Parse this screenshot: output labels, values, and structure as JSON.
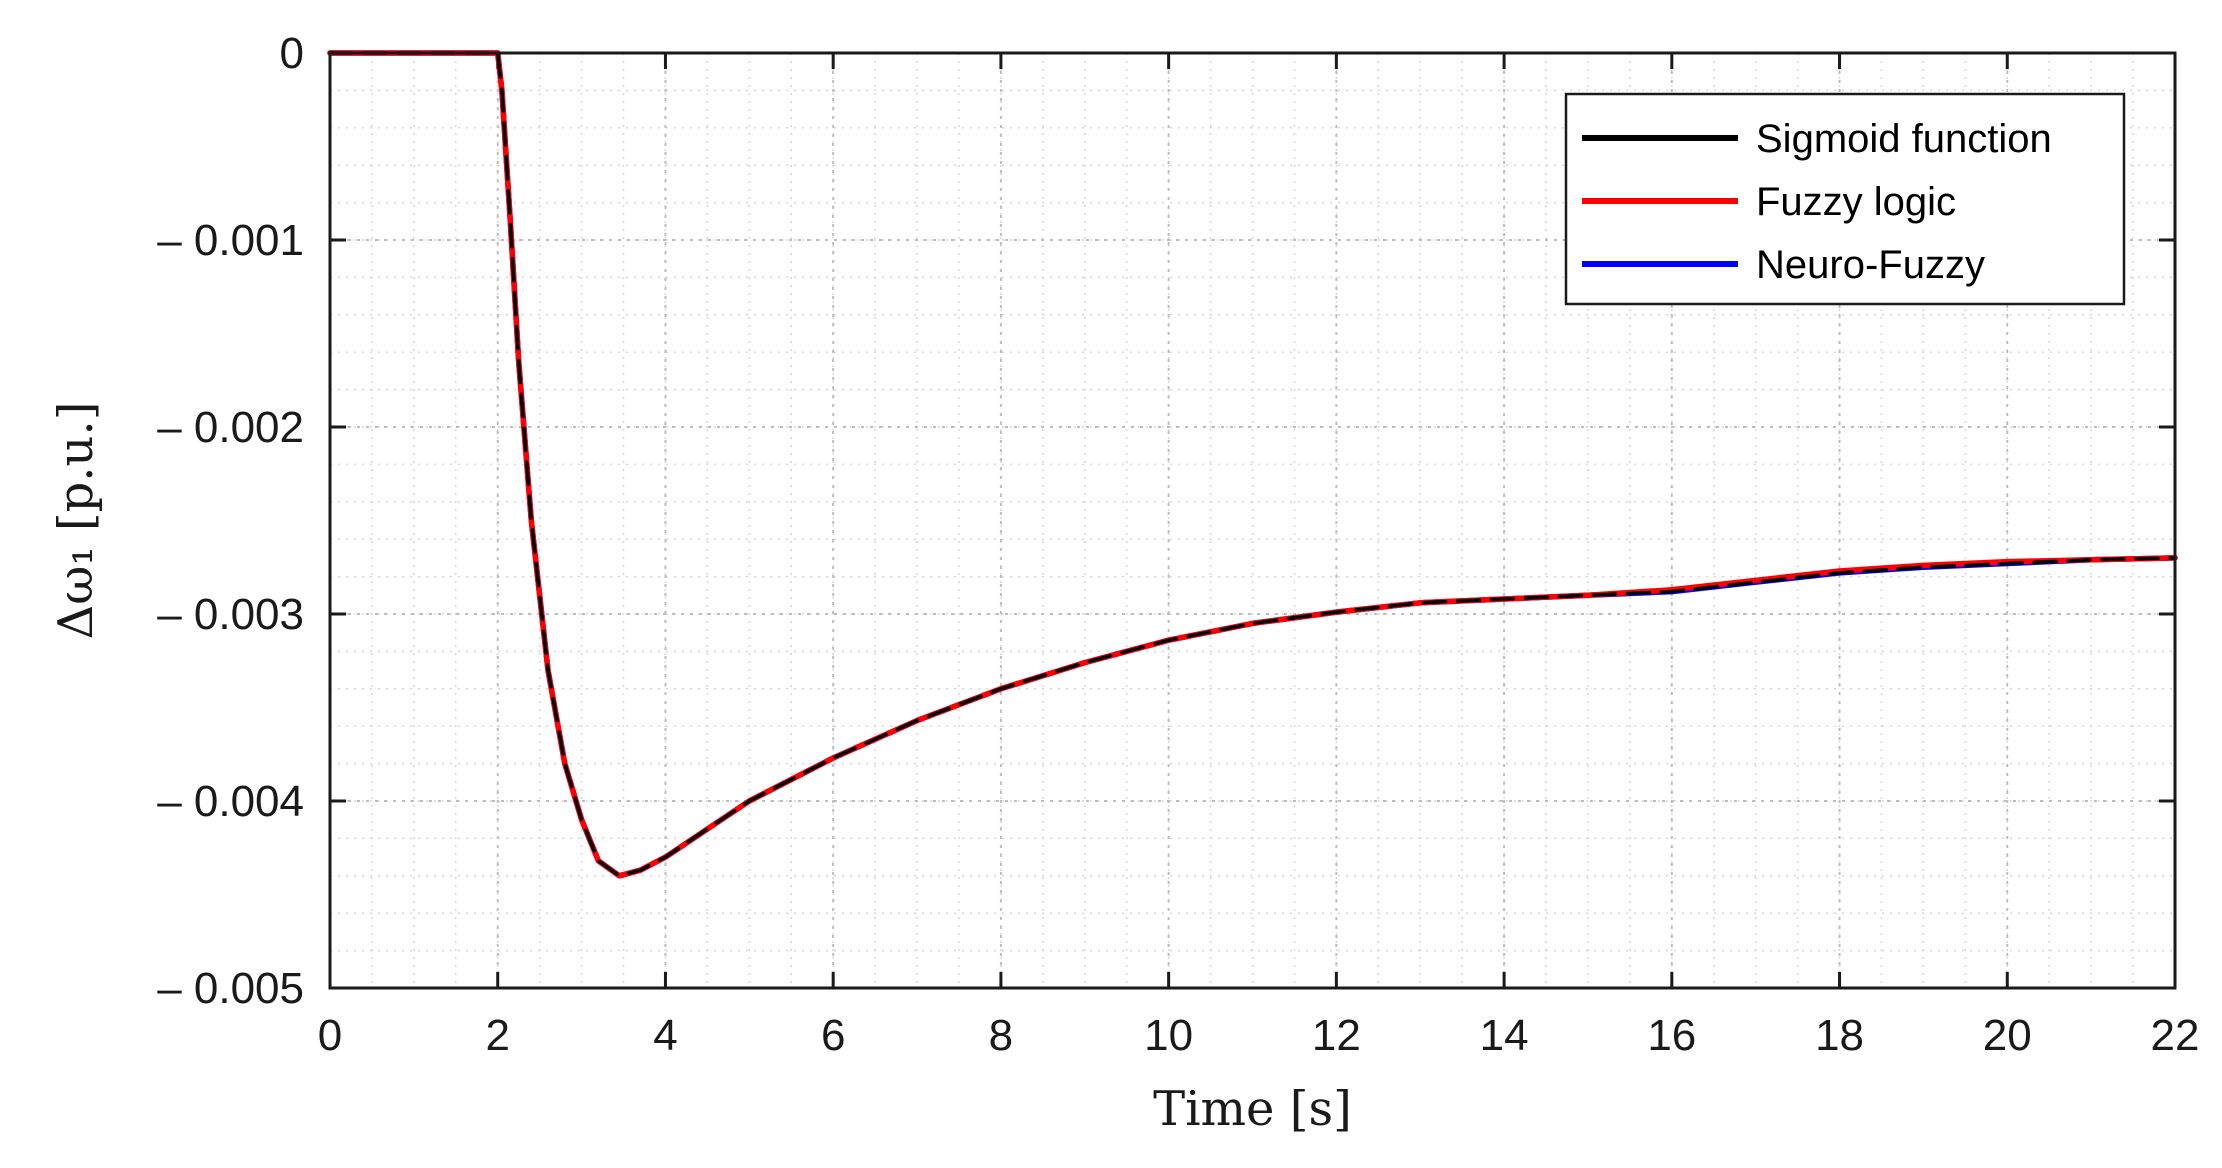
{
  "chart_data": {
    "type": "line",
    "title": "",
    "xlabel": "Time [s]",
    "ylabel": "Δω₁ [p.u.]",
    "xlim": [
      0,
      22
    ],
    "ylim": [
      -0.005,
      0
    ],
    "xticks": [
      0,
      2,
      4,
      6,
      8,
      10,
      12,
      14,
      16,
      18,
      20,
      22
    ],
    "xtick_labels": [
      "0",
      "2",
      "4",
      "6",
      "8",
      "10",
      "12",
      "14",
      "16",
      "18",
      "20",
      "22"
    ],
    "yticks": [
      0,
      -0.001,
      -0.002,
      -0.003,
      -0.004,
      -0.005
    ],
    "ytick_labels": [
      "0",
      "– 0.001",
      "– 0.002",
      "– 0.003",
      "– 0.004",
      "– 0.005"
    ],
    "grid": true,
    "minor_grid": true,
    "legend_position": "top-right",
    "series": [
      {
        "name": "Sigmoid function",
        "color": "#000000",
        "dashed": true,
        "points": [
          [
            0,
            0
          ],
          [
            2,
            0
          ],
          [
            2.05,
            -0.0002
          ],
          [
            2.15,
            -0.0009
          ],
          [
            2.25,
            -0.00165
          ],
          [
            2.4,
            -0.0025
          ],
          [
            2.6,
            -0.0033
          ],
          [
            2.8,
            -0.0038
          ],
          [
            3.0,
            -0.0041
          ],
          [
            3.2,
            -0.00432
          ],
          [
            3.45,
            -0.0044
          ],
          [
            3.7,
            -0.00437
          ],
          [
            4.0,
            -0.0043
          ],
          [
            4.5,
            -0.00415
          ],
          [
            5,
            -0.004
          ],
          [
            6,
            -0.00377
          ],
          [
            7,
            -0.00357
          ],
          [
            8,
            -0.0034
          ],
          [
            9,
            -0.00326
          ],
          [
            10,
            -0.00314
          ],
          [
            11,
            -0.00305
          ],
          [
            12,
            -0.00299
          ],
          [
            13,
            -0.00294
          ],
          [
            14,
            -0.00292
          ],
          [
            15,
            -0.0029
          ],
          [
            16,
            -0.00288
          ],
          [
            17,
            -0.00283
          ],
          [
            18,
            -0.00278
          ],
          [
            19,
            -0.00275
          ],
          [
            20,
            -0.00273
          ],
          [
            21,
            -0.00271
          ],
          [
            22,
            -0.0027
          ]
        ]
      },
      {
        "name": "Fuzzy logic",
        "color": "#ff0000",
        "dashed": false,
        "points": [
          [
            0,
            0
          ],
          [
            2,
            0
          ],
          [
            2.05,
            -0.0002
          ],
          [
            2.15,
            -0.0009
          ],
          [
            2.25,
            -0.00165
          ],
          [
            2.4,
            -0.0025
          ],
          [
            2.6,
            -0.0033
          ],
          [
            2.8,
            -0.0038
          ],
          [
            3.0,
            -0.0041
          ],
          [
            3.2,
            -0.00432
          ],
          [
            3.45,
            -0.0044
          ],
          [
            3.7,
            -0.00437
          ],
          [
            4.0,
            -0.0043
          ],
          [
            4.5,
            -0.00415
          ],
          [
            5,
            -0.004
          ],
          [
            6,
            -0.00377
          ],
          [
            7,
            -0.00357
          ],
          [
            8,
            -0.0034
          ],
          [
            9,
            -0.00326
          ],
          [
            10,
            -0.00314
          ],
          [
            11,
            -0.00305
          ],
          [
            12,
            -0.00299
          ],
          [
            13,
            -0.00294
          ],
          [
            14,
            -0.00292
          ],
          [
            15,
            -0.0029
          ],
          [
            16,
            -0.00287
          ],
          [
            17,
            -0.00282
          ],
          [
            18,
            -0.00277
          ],
          [
            19,
            -0.00274
          ],
          [
            20,
            -0.00272
          ],
          [
            21,
            -0.00271
          ],
          [
            22,
            -0.0027
          ]
        ]
      },
      {
        "name": "Neuro-Fuzzy",
        "color": "#0000ff",
        "dashed": false,
        "points": [
          [
            0,
            0
          ],
          [
            2,
            0
          ],
          [
            2.05,
            -0.0002
          ],
          [
            2.15,
            -0.0009
          ],
          [
            2.25,
            -0.00165
          ],
          [
            2.4,
            -0.0025
          ],
          [
            2.6,
            -0.0033
          ],
          [
            2.8,
            -0.0038
          ],
          [
            3.0,
            -0.0041
          ],
          [
            3.2,
            -0.00432
          ],
          [
            3.45,
            -0.0044
          ],
          [
            3.7,
            -0.00437
          ],
          [
            4.0,
            -0.0043
          ],
          [
            4.5,
            -0.00415
          ],
          [
            5,
            -0.004
          ],
          [
            6,
            -0.00377
          ],
          [
            7,
            -0.00357
          ],
          [
            8,
            -0.0034
          ],
          [
            9,
            -0.00326
          ],
          [
            10,
            -0.00314
          ],
          [
            11,
            -0.00305
          ],
          [
            12,
            -0.00299
          ],
          [
            13,
            -0.00294
          ],
          [
            14,
            -0.00292
          ],
          [
            15,
            -0.0029
          ],
          [
            16,
            -0.00288
          ],
          [
            17,
            -0.00283
          ],
          [
            18,
            -0.00278
          ],
          [
            19,
            -0.00275
          ],
          [
            20,
            -0.00273
          ],
          [
            21,
            -0.00271
          ],
          [
            22,
            -0.0027
          ]
        ]
      }
    ]
  }
}
